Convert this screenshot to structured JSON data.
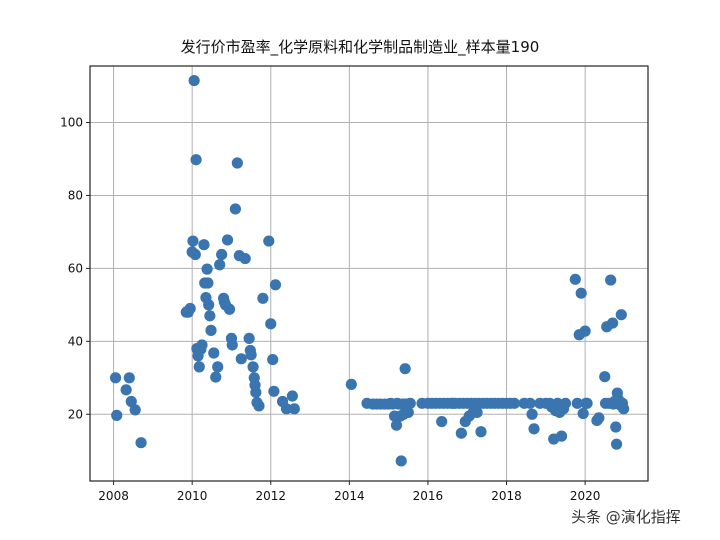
{
  "watermark": "头条 @演化指挥",
  "chart_data": {
    "type": "scatter",
    "title": "发行价市盈率_化学原料和化学制品制造业_样本量190",
    "xlabel": "",
    "ylabel": "",
    "xlim": [
      2007.4,
      2021.6
    ],
    "ylim": [
      1.7,
      115.5
    ],
    "grid": true,
    "legend": null,
    "xticks": [
      2008,
      2010,
      2012,
      2014,
      2016,
      2018,
      2020
    ],
    "yticks": [
      20,
      40,
      60,
      80,
      100
    ],
    "marker_color": "#3a75b0",
    "points": [
      [
        2008.05,
        30
      ],
      [
        2008.08,
        19.7
      ],
      [
        2008.32,
        26.7
      ],
      [
        2008.4,
        30
      ],
      [
        2008.45,
        23.5
      ],
      [
        2008.55,
        21.2
      ],
      [
        2008.7,
        12.2
      ],
      [
        2009.85,
        48
      ],
      [
        2009.9,
        48
      ],
      [
        2009.95,
        49
      ],
      [
        2010.0,
        64.5
      ],
      [
        2010.02,
        67.5
      ],
      [
        2010.05,
        111.5
      ],
      [
        2010.08,
        63.8
      ],
      [
        2010.1,
        89.8
      ],
      [
        2010.12,
        38
      ],
      [
        2010.15,
        36
      ],
      [
        2010.18,
        33
      ],
      [
        2010.22,
        37.8
      ],
      [
        2010.25,
        39
      ],
      [
        2010.3,
        66.5
      ],
      [
        2010.32,
        56
      ],
      [
        2010.35,
        52
      ],
      [
        2010.38,
        59.8
      ],
      [
        2010.4,
        56
      ],
      [
        2010.42,
        50
      ],
      [
        2010.45,
        47
      ],
      [
        2010.48,
        43
      ],
      [
        2010.55,
        36.8
      ],
      [
        2010.6,
        30.2
      ],
      [
        2010.65,
        33
      ],
      [
        2010.7,
        61
      ],
      [
        2010.75,
        63.8
      ],
      [
        2010.8,
        51.8
      ],
      [
        2010.82,
        50.8
      ],
      [
        2010.85,
        50
      ],
      [
        2010.9,
        67.8
      ],
      [
        2010.95,
        48.8
      ],
      [
        2011.0,
        40.8
      ],
      [
        2011.02,
        39
      ],
      [
        2011.1,
        76.3
      ],
      [
        2011.15,
        88.9
      ],
      [
        2011.2,
        63.5
      ],
      [
        2011.25,
        35.2
      ],
      [
        2011.35,
        62.7
      ],
      [
        2011.45,
        40.8
      ],
      [
        2011.48,
        37.5
      ],
      [
        2011.5,
        36.3
      ],
      [
        2011.55,
        33
      ],
      [
        2011.58,
        30
      ],
      [
        2011.6,
        28
      ],
      [
        2011.62,
        26
      ],
      [
        2011.65,
        23.2
      ],
      [
        2011.7,
        22.3
      ],
      [
        2011.8,
        51.8
      ],
      [
        2011.95,
        67.5
      ],
      [
        2012.0,
        44.8
      ],
      [
        2012.05,
        35
      ],
      [
        2012.08,
        26.3
      ],
      [
        2012.12,
        55.5
      ],
      [
        2012.3,
        23.5
      ],
      [
        2012.4,
        21.5
      ],
      [
        2012.55,
        25
      ],
      [
        2012.6,
        21.5
      ],
      [
        2014.05,
        28.2
      ],
      [
        2014.45,
        23
      ],
      [
        2014.6,
        22.8
      ],
      [
        2014.7,
        22.8
      ],
      [
        2014.8,
        22.8
      ],
      [
        2014.9,
        22.8
      ],
      [
        2015.0,
        22.8
      ],
      [
        2015.05,
        23
      ],
      [
        2015.1,
        22.8
      ],
      [
        2015.15,
        19.5
      ],
      [
        2015.2,
        17
      ],
      [
        2015.22,
        23
      ],
      [
        2015.25,
        22.8
      ],
      [
        2015.3,
        19.5
      ],
      [
        2015.32,
        7.2
      ],
      [
        2015.35,
        22.8
      ],
      [
        2015.38,
        20
      ],
      [
        2015.4,
        22.8
      ],
      [
        2015.42,
        32.5
      ],
      [
        2015.45,
        22.8
      ],
      [
        2015.5,
        20.5
      ],
      [
        2015.55,
        23
      ],
      [
        2015.85,
        23
      ],
      [
        2016.0,
        23
      ],
      [
        2016.1,
        23
      ],
      [
        2016.2,
        23
      ],
      [
        2016.3,
        23
      ],
      [
        2016.35,
        18
      ],
      [
        2016.4,
        23
      ],
      [
        2016.5,
        23
      ],
      [
        2016.6,
        23
      ],
      [
        2016.65,
        23
      ],
      [
        2016.7,
        23
      ],
      [
        2016.8,
        23
      ],
      [
        2016.85,
        14.8
      ],
      [
        2016.9,
        23
      ],
      [
        2016.95,
        18
      ],
      [
        2017.0,
        23
      ],
      [
        2017.05,
        19.5
      ],
      [
        2017.1,
        23
      ],
      [
        2017.15,
        20.5
      ],
      [
        2017.2,
        23
      ],
      [
        2017.25,
        20.5
      ],
      [
        2017.3,
        23
      ],
      [
        2017.35,
        15.2
      ],
      [
        2017.4,
        23
      ],
      [
        2017.5,
        23
      ],
      [
        2017.6,
        23
      ],
      [
        2017.7,
        23
      ],
      [
        2017.8,
        23
      ],
      [
        2017.9,
        23
      ],
      [
        2018.0,
        23
      ],
      [
        2018.1,
        23
      ],
      [
        2018.2,
        23
      ],
      [
        2018.45,
        23
      ],
      [
        2018.6,
        23
      ],
      [
        2018.65,
        20
      ],
      [
        2018.7,
        16
      ],
      [
        2018.85,
        23
      ],
      [
        2019.0,
        23
      ],
      [
        2019.1,
        23
      ],
      [
        2019.15,
        22
      ],
      [
        2019.2,
        13.2
      ],
      [
        2019.25,
        21
      ],
      [
        2019.3,
        23
      ],
      [
        2019.35,
        20.5
      ],
      [
        2019.4,
        14
      ],
      [
        2019.45,
        21.5
      ],
      [
        2019.5,
        23
      ],
      [
        2019.75,
        57
      ],
      [
        2019.8,
        23
      ],
      [
        2019.85,
        41.8
      ],
      [
        2019.9,
        53.2
      ],
      [
        2019.95,
        20.2
      ],
      [
        2020.0,
        42.8
      ],
      [
        2020.02,
        23
      ],
      [
        2020.05,
        23
      ],
      [
        2020.3,
        18.3
      ],
      [
        2020.35,
        19
      ],
      [
        2020.5,
        30.3
      ],
      [
        2020.52,
        23
      ],
      [
        2020.55,
        44
      ],
      [
        2020.6,
        23
      ],
      [
        2020.65,
        56.8
      ],
      [
        2020.7,
        45
      ],
      [
        2020.72,
        22.8
      ],
      [
        2020.75,
        23.5
      ],
      [
        2020.78,
        16.5
      ],
      [
        2020.8,
        11.8
      ],
      [
        2020.82,
        25.8
      ],
      [
        2020.85,
        24
      ],
      [
        2020.88,
        23
      ],
      [
        2020.9,
        22.5
      ],
      [
        2020.92,
        47.3
      ],
      [
        2020.95,
        23
      ],
      [
        2020.98,
        21.5
      ]
    ]
  }
}
